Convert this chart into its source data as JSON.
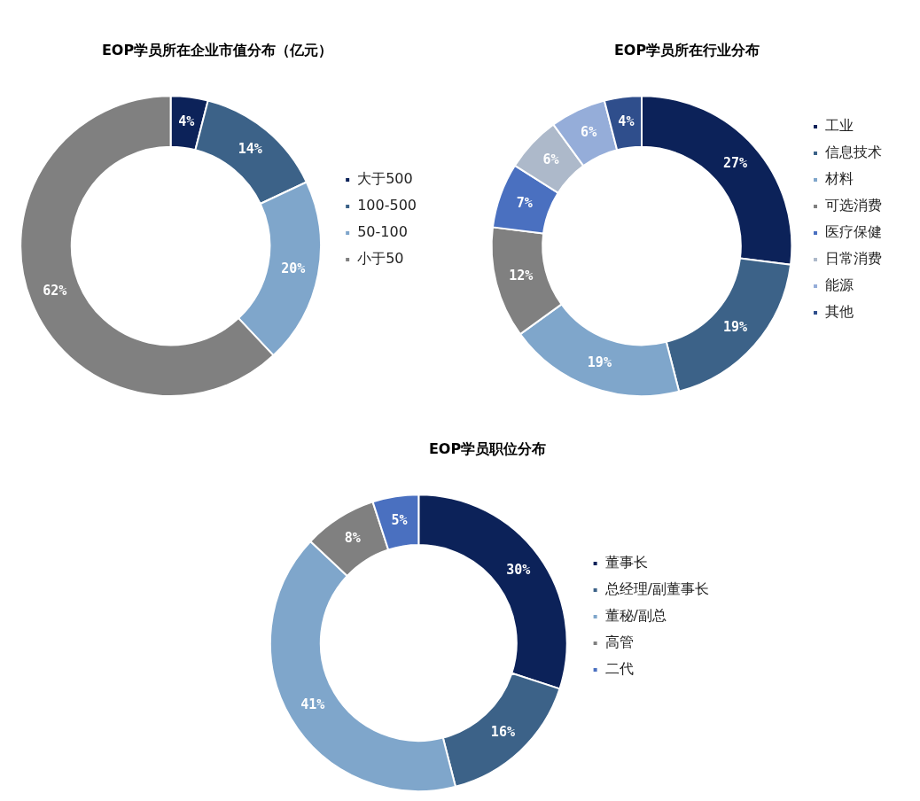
{
  "chart_data": [
    {
      "type": "donut",
      "title": "EOP学员所在企业市值分布（亿元）",
      "categories": [
        "大于500",
        "100-500",
        "50-100",
        "小于50"
      ],
      "values": [
        4,
        14,
        20,
        62
      ],
      "value_labels": [
        "4%",
        "14%",
        "20%",
        "62%"
      ],
      "colors": [
        "#0c2259",
        "#3c6288",
        "#7fa6cb",
        "#808080"
      ],
      "legend": "right"
    },
    {
      "type": "donut",
      "title": "EOP学员所在行业分布",
      "categories": [
        "工业",
        "信息技术",
        "材料",
        "可选消费",
        "医疗保健",
        "日常消费",
        "能源",
        "其他"
      ],
      "values": [
        27,
        19,
        19,
        12,
        7,
        6,
        6,
        4
      ],
      "value_labels": [
        "27%",
        "19%",
        "19%",
        "12%",
        "7%",
        "6%",
        "6%",
        "4%"
      ],
      "colors": [
        "#0c2259",
        "#3c6288",
        "#7fa6cb",
        "#808080",
        "#4a70c0",
        "#adb9ca",
        "#95add9",
        "#2f4e8c"
      ],
      "legend": "right"
    },
    {
      "type": "donut",
      "title": "EOP学员职位分布",
      "categories": [
        "董事长",
        "总经理/副董事长",
        "董秘/副总",
        "高管",
        "二代"
      ],
      "values": [
        30,
        16,
        41,
        8,
        5
      ],
      "value_labels": [
        "30%",
        "16%",
        "41%",
        "8%",
        "5%"
      ],
      "colors": [
        "#0c2259",
        "#3c6288",
        "#7fa6cb",
        "#808080",
        "#4a70c0"
      ],
      "legend": "right"
    }
  ]
}
